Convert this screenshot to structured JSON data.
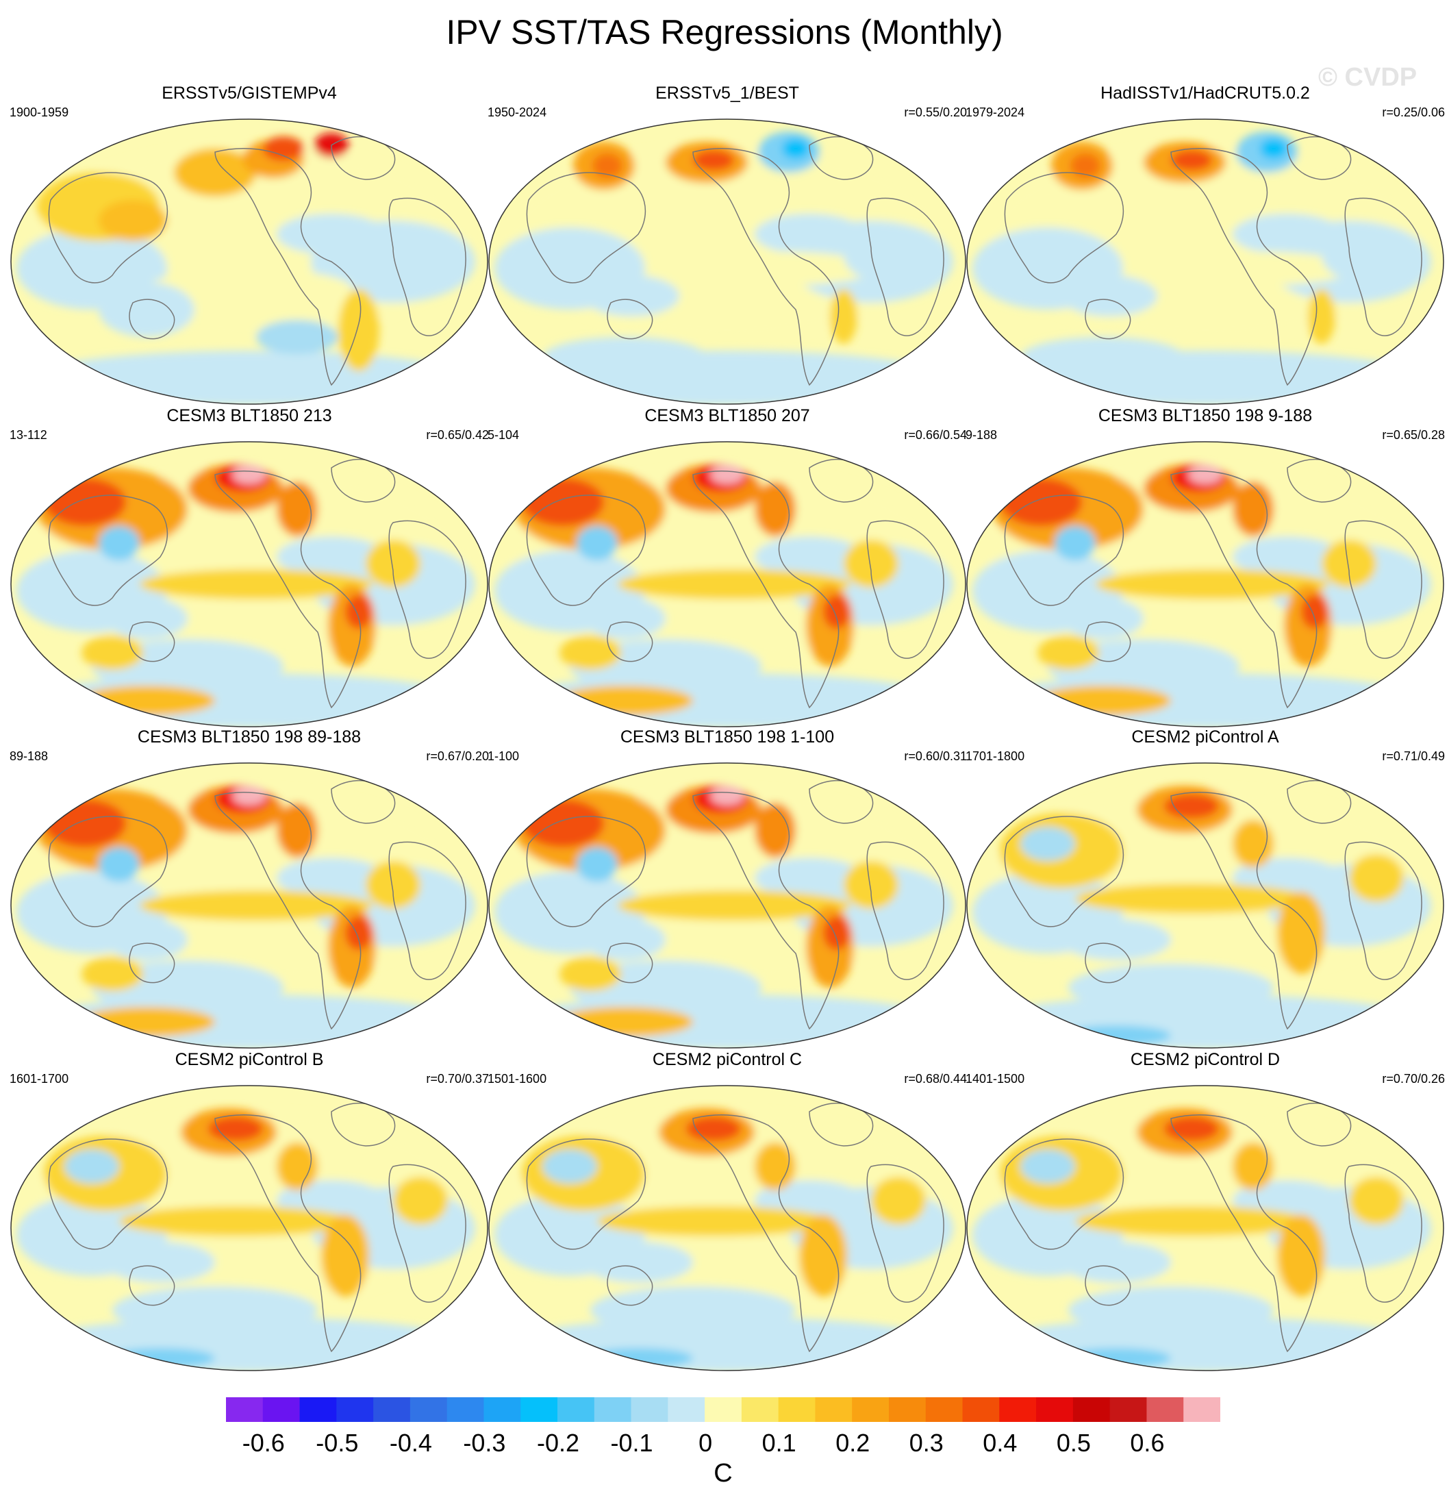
{
  "title": "IPV SST/TAS Regressions (Monthly)",
  "watermark": "© CVDP",
  "units": "C",
  "colors": [
    "#8728ef",
    "#6a14f1",
    "#1919f5",
    "#1f35ee",
    "#2b54e3",
    "#3273e6",
    "#2d88ef",
    "#1da4f6",
    "#05c0fb",
    "#46c4f5",
    "#7ed1f5",
    "#a8ddf3",
    "#c7e8f5",
    "#fdfab2",
    "#fbe867",
    "#fbd536",
    "#fbbd22",
    "#f9a313",
    "#f78b0c",
    "#f57208",
    "#f24f07",
    "#f21b07",
    "#e50a0a",
    "#c90505",
    "#c71616",
    "#e05a5e",
    "#f7b4bb"
  ],
  "colorbar_labels": [
    "-0.6",
    "-0.5",
    "-0.4",
    "-0.3",
    "-0.2",
    "-0.1",
    "0",
    "0.1",
    "0.2",
    "0.3",
    "0.4",
    "0.5",
    "0.6"
  ],
  "panels": [
    {
      "title": "ERSSTv5/GISTEMPv4",
      "left": "1900-1959",
      "right": "",
      "style": "weak"
    },
    {
      "title": "ERSSTv5_1/BEST",
      "left": "1950-2024",
      "right": "r=0.55/0.20",
      "style": "obs"
    },
    {
      "title": "HadISSTv1/HadCRUT5.0.2",
      "left": "1979-2024",
      "right": "r=0.25/0.06",
      "style": "obs"
    },
    {
      "title": "CESM3 BLT1850 213",
      "left": "13-112",
      "right": "r=0.65/0.42",
      "style": "model"
    },
    {
      "title": "CESM3 BLT1850 207",
      "left": "5-104",
      "right": "r=0.66/0.54",
      "style": "model"
    },
    {
      "title": "CESM3 BLT1850 198 9-188",
      "left": "9-188",
      "right": "r=0.65/0.28",
      "style": "model"
    },
    {
      "title": "CESM3 BLT1850 198 89-188",
      "left": "89-188",
      "right": "r=0.67/0.20",
      "style": "model"
    },
    {
      "title": "CESM3 BLT1850 198 1-100",
      "left": "1-100",
      "right": "r=0.60/0.31",
      "style": "model"
    },
    {
      "title": "CESM2 piControl A",
      "left": "1701-1800",
      "right": "r=0.71/0.49",
      "style": "cesm2"
    },
    {
      "title": "CESM2 piControl B",
      "left": "1601-1700",
      "right": "r=0.70/0.37",
      "style": "cesm2"
    },
    {
      "title": "CESM2 piControl C",
      "left": "1501-1600",
      "right": "r=0.68/0.44",
      "style": "cesm2"
    },
    {
      "title": "CESM2 piControl D",
      "left": "1401-1500",
      "right": "r=0.70/0.26",
      "style": "cesm2"
    }
  ]
}
